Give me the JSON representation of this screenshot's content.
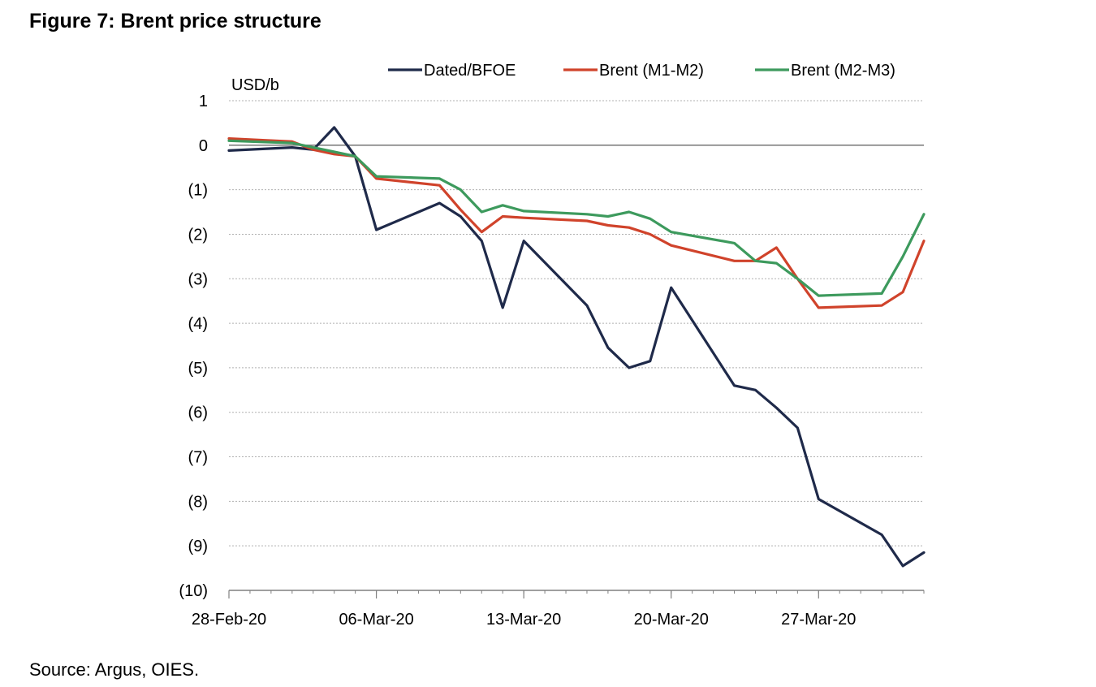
{
  "figure_title": "Figure 7: Brent price structure",
  "source_note": "Source: Argus, OIES.",
  "chart_data": {
    "type": "line",
    "ylabel": "USD/b",
    "ylim": [
      -10,
      1
    ],
    "yticks": [
      1,
      0,
      -1,
      -2,
      -3,
      -4,
      -5,
      -6,
      -7,
      -8,
      -9,
      -10
    ],
    "ytick_labels": [
      "1",
      "0",
      "(1)",
      "(2)",
      "(3)",
      "(4)",
      "(5)",
      "(6)",
      "(7)",
      "(8)",
      "(9)",
      "(10)"
    ],
    "xlim": [
      "2020-02-28",
      "2020-04-01"
    ],
    "xtick_dates": [
      "2020-02-28",
      "2020-03-06",
      "2020-03-13",
      "2020-03-20",
      "2020-03-27"
    ],
    "xtick_labels": [
      "28-Feb-20",
      "06-Mar-20",
      "13-Mar-20",
      "20-Mar-20",
      "27-Mar-20"
    ],
    "legend_position": "top",
    "grid": true,
    "series": [
      {
        "name": "Dated/BFOE",
        "color": "#1f2a4a",
        "points": [
          [
            "2020-02-28",
            -0.12
          ],
          [
            "2020-03-02",
            -0.05
          ],
          [
            "2020-03-03",
            -0.1
          ],
          [
            "2020-03-04",
            0.4
          ],
          [
            "2020-03-05",
            -0.25
          ],
          [
            "2020-03-06",
            -1.9
          ],
          [
            "2020-03-09",
            -1.3
          ],
          [
            "2020-03-10",
            -1.6
          ],
          [
            "2020-03-11",
            -2.15
          ],
          [
            "2020-03-12",
            -3.65
          ],
          [
            "2020-03-13",
            -2.15
          ],
          [
            "2020-03-16",
            -3.6
          ],
          [
            "2020-03-17",
            -4.55
          ],
          [
            "2020-03-18",
            -5.0
          ],
          [
            "2020-03-19",
            -4.85
          ],
          [
            "2020-03-20",
            -3.2
          ],
          [
            "2020-03-23",
            -5.4
          ],
          [
            "2020-03-24",
            -5.5
          ],
          [
            "2020-03-25",
            -5.9
          ],
          [
            "2020-03-26",
            -6.35
          ],
          [
            "2020-03-27",
            -7.95
          ],
          [
            "2020-03-30",
            -8.75
          ],
          [
            "2020-03-31",
            -9.45
          ],
          [
            "2020-04-01",
            -9.15
          ]
        ]
      },
      {
        "name": "Brent (M1-M2)",
        "color": "#d0432b",
        "points": [
          [
            "2020-02-28",
            0.15
          ],
          [
            "2020-03-02",
            0.08
          ],
          [
            "2020-03-03",
            -0.1
          ],
          [
            "2020-03-04",
            -0.2
          ],
          [
            "2020-03-05",
            -0.25
          ],
          [
            "2020-03-06",
            -0.75
          ],
          [
            "2020-03-09",
            -0.9
          ],
          [
            "2020-03-10",
            -1.45
          ],
          [
            "2020-03-11",
            -1.95
          ],
          [
            "2020-03-12",
            -1.6
          ],
          [
            "2020-03-13",
            -1.63
          ],
          [
            "2020-03-16",
            -1.7
          ],
          [
            "2020-03-17",
            -1.8
          ],
          [
            "2020-03-18",
            -1.85
          ],
          [
            "2020-03-19",
            -2.0
          ],
          [
            "2020-03-20",
            -2.25
          ],
          [
            "2020-03-23",
            -2.6
          ],
          [
            "2020-03-24",
            -2.6
          ],
          [
            "2020-03-25",
            -2.3
          ],
          [
            "2020-03-26",
            -3.0
          ],
          [
            "2020-03-27",
            -3.65
          ],
          [
            "2020-03-30",
            -3.6
          ],
          [
            "2020-03-31",
            -3.3
          ],
          [
            "2020-04-01",
            -2.15
          ]
        ]
      },
      {
        "name": "Brent (M2-M3)",
        "color": "#3d9a5d",
        "points": [
          [
            "2020-02-28",
            0.1
          ],
          [
            "2020-03-02",
            0.05
          ],
          [
            "2020-03-03",
            -0.05
          ],
          [
            "2020-03-04",
            -0.15
          ],
          [
            "2020-03-05",
            -0.25
          ],
          [
            "2020-03-06",
            -0.7
          ],
          [
            "2020-03-09",
            -0.75
          ],
          [
            "2020-03-10",
            -1.0
          ],
          [
            "2020-03-11",
            -1.5
          ],
          [
            "2020-03-12",
            -1.35
          ],
          [
            "2020-03-13",
            -1.48
          ],
          [
            "2020-03-16",
            -1.55
          ],
          [
            "2020-03-17",
            -1.6
          ],
          [
            "2020-03-18",
            -1.5
          ],
          [
            "2020-03-19",
            -1.65
          ],
          [
            "2020-03-20",
            -1.95
          ],
          [
            "2020-03-23",
            -2.2
          ],
          [
            "2020-03-24",
            -2.6
          ],
          [
            "2020-03-25",
            -2.65
          ],
          [
            "2020-03-26",
            -3.0
          ],
          [
            "2020-03-27",
            -3.38
          ],
          [
            "2020-03-30",
            -3.33
          ],
          [
            "2020-03-31",
            -2.5
          ],
          [
            "2020-04-01",
            -1.55
          ]
        ]
      }
    ]
  }
}
